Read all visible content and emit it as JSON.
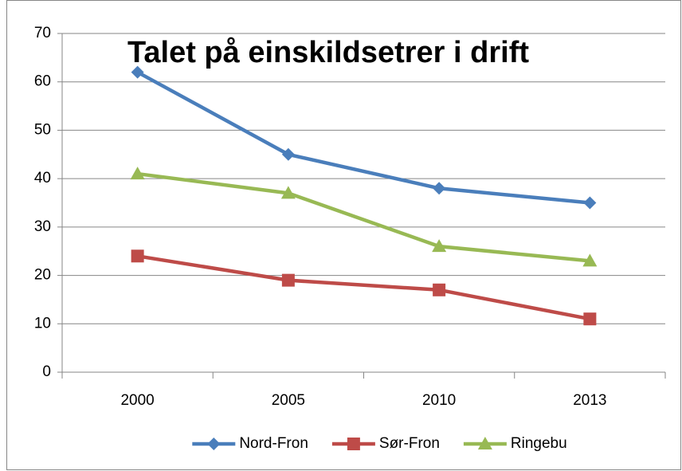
{
  "chart_data": {
    "type": "line",
    "title": "Talet på einskildsetrer i drift",
    "categories": [
      "2000",
      "2005",
      "2010",
      "2013"
    ],
    "series": [
      {
        "name": "Nord-Fron",
        "color": "#4a7ebb",
        "marker": "diamond",
        "values": [
          62,
          45,
          38,
          35
        ]
      },
      {
        "name": "Sør-Fron",
        "color": "#be4b48",
        "marker": "square",
        "values": [
          24,
          19,
          17,
          11
        ]
      },
      {
        "name": "Ringebu",
        "color": "#98b954",
        "marker": "triangle",
        "values": [
          41,
          37,
          26,
          23
        ]
      }
    ],
    "ylim": [
      0,
      70
    ],
    "yticks": [
      0,
      10,
      20,
      30,
      40,
      50,
      60,
      70
    ],
    "grid": true,
    "legend": "bottom"
  }
}
